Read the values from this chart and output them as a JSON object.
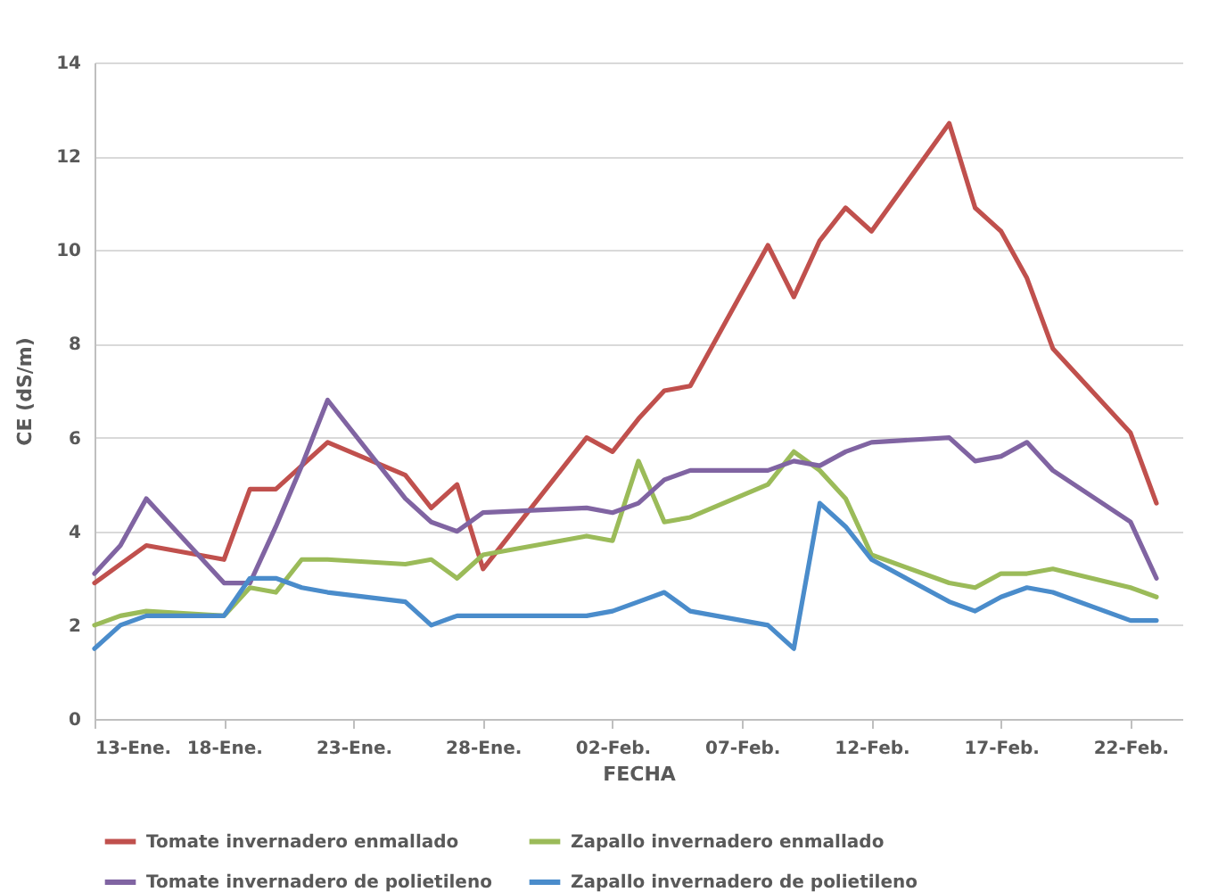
{
  "chart_data": {
    "type": "line",
    "xlabel": "FECHA",
    "ylabel": "CE (dS/m)",
    "x": [
      "--01-13",
      "--01-14",
      "--01-15",
      "--01-18",
      "--01-19",
      "--01-20",
      "--01-21",
      "--01-22",
      "--01-25",
      "--01-26",
      "--01-27",
      "--01-28",
      "--02-01",
      "--02-02",
      "--02-03",
      "--02-04",
      "--02-05",
      "--02-08",
      "--02-09",
      "--02-10",
      "--02-11",
      "--02-12",
      "--02-15",
      "--02-16",
      "--02-17",
      "--02-18",
      "--02-19",
      "--02-22",
      "--02-23"
    ],
    "series": [
      {
        "name": "Tomate invernadero enmallado",
        "color": "#c0504d",
        "values": [
          2.9,
          3.3,
          3.7,
          3.4,
          4.9,
          4.9,
          5.4,
          5.9,
          5.2,
          4.5,
          5.0,
          3.2,
          6.0,
          5.7,
          6.4,
          7.0,
          7.1,
          10.1,
          9.0,
          10.2,
          10.9,
          10.4,
          12.7,
          10.9,
          10.4,
          9.4,
          7.9,
          6.1,
          4.6
        ]
      },
      {
        "name": "Zapallo invernadero enmallado",
        "color": "#9bbb59",
        "values": [
          2.0,
          2.2,
          2.3,
          2.2,
          2.8,
          2.7,
          3.4,
          3.4,
          3.3,
          3.4,
          3.0,
          3.5,
          3.9,
          3.8,
          5.5,
          4.2,
          4.3,
          5.0,
          5.7,
          5.3,
          4.7,
          3.5,
          2.9,
          2.8,
          3.1,
          3.1,
          3.2,
          2.8,
          2.6
        ]
      },
      {
        "name": "Tomate invernadero de polietileno",
        "color": "#8064a2",
        "values": [
          3.1,
          3.7,
          4.7,
          2.9,
          2.9,
          4.1,
          5.4,
          6.8,
          4.7,
          4.2,
          4.0,
          4.4,
          4.5,
          4.4,
          4.6,
          5.1,
          5.3,
          5.3,
          5.5,
          5.4,
          5.7,
          5.9,
          6.0,
          5.5,
          5.6,
          5.9,
          5.3,
          4.2,
          3.0
        ]
      },
      {
        "name": "Zapallo invernadero de polietileno",
        "color": "#4a8ccb",
        "values": [
          1.5,
          2.0,
          2.2,
          2.2,
          3.0,
          3.0,
          2.8,
          2.7,
          2.5,
          2.0,
          2.2,
          2.2,
          2.2,
          2.3,
          2.5,
          2.7,
          2.3,
          2.0,
          1.5,
          4.6,
          4.1,
          3.4,
          2.5,
          2.3,
          2.6,
          2.8,
          2.7,
          2.1,
          2.1
        ]
      }
    ],
    "xlim": [
      "--01-13",
      "--02-24"
    ],
    "xticks": [
      {
        "value": "--01-13",
        "label": "13-Ene."
      },
      {
        "value": "--01-18",
        "label": "18-Ene."
      },
      {
        "value": "--01-23",
        "label": "23-Ene."
      },
      {
        "value": "--01-28",
        "label": "28-Ene."
      },
      {
        "value": "--02-02",
        "label": "02-Feb."
      },
      {
        "value": "--02-07",
        "label": "07-Feb."
      },
      {
        "value": "--02-12",
        "label": "12-Feb."
      },
      {
        "value": "--02-17",
        "label": "17-Feb."
      },
      {
        "value": "--02-22",
        "label": "22-Feb."
      }
    ],
    "ylim": [
      0,
      14
    ],
    "yticks": [
      0,
      2,
      4,
      6,
      8,
      10,
      12,
      14
    ],
    "grid": "y",
    "legend": "bottom"
  }
}
